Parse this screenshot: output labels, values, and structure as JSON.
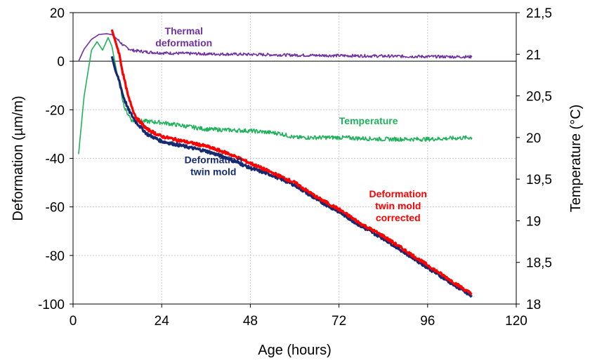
{
  "chart_data": {
    "type": "line",
    "xlabel": "Age (hours)",
    "ylabel": "Deformation (µm/m)",
    "y2label": "Temperature (°C)",
    "xlim": [
      0,
      120
    ],
    "ylim": [
      -100,
      20
    ],
    "y2lim": [
      18,
      21.5
    ],
    "xticks": [
      0,
      24,
      48,
      72,
      96,
      120
    ],
    "yticks": [
      20,
      0,
      -20,
      -40,
      -60,
      -80,
      -100
    ],
    "y2ticks": [
      "21,5",
      "21",
      "20,5",
      "20",
      "19,5",
      "19",
      "18,5",
      "18"
    ],
    "grid": true,
    "series": [
      {
        "name": "Thermal deformation",
        "axis": "left",
        "color": "#7030a0",
        "points": [
          [
            1.5,
            0
          ],
          [
            3,
            5
          ],
          [
            5,
            9
          ],
          [
            7,
            11
          ],
          [
            9,
            11.3
          ],
          [
            10.5,
            11
          ],
          [
            12,
            9
          ],
          [
            14,
            6
          ],
          [
            16,
            4.5
          ],
          [
            20,
            3.8
          ],
          [
            24,
            3.4
          ],
          [
            36,
            3
          ],
          [
            48,
            2.8
          ],
          [
            60,
            2.5
          ],
          [
            72,
            2.3
          ],
          [
            84,
            2.1
          ],
          [
            96,
            1.9
          ],
          [
            108,
            1.8
          ]
        ]
      },
      {
        "name": "Temperature",
        "axis": "right",
        "color": "#1fb25a",
        "points": [
          [
            1.5,
            19.8
          ],
          [
            3,
            20.5
          ],
          [
            5,
            21.05
          ],
          [
            6.5,
            21.15
          ],
          [
            8,
            21.05
          ],
          [
            9.5,
            21.2
          ],
          [
            10.5,
            21.1
          ],
          [
            12,
            20.75
          ],
          [
            14,
            20.35
          ],
          [
            16,
            20.2
          ],
          [
            18,
            20.2
          ],
          [
            24,
            20.18
          ],
          [
            36,
            20.1
          ],
          [
            48,
            20.08
          ],
          [
            56,
            20.05
          ],
          [
            60,
            20.0
          ],
          [
            72,
            20.0
          ],
          [
            84,
            19.98
          ],
          [
            96,
            19.98
          ],
          [
            108,
            20.0
          ]
        ]
      },
      {
        "name": "Deformation twin mold",
        "axis": "left",
        "color": "#152a70",
        "points": [
          [
            10.5,
            2
          ],
          [
            11.5,
            -4
          ],
          [
            12.5,
            -8
          ],
          [
            13.5,
            -14
          ],
          [
            15,
            -20
          ],
          [
            17,
            -25
          ],
          [
            20,
            -30
          ],
          [
            24,
            -33
          ],
          [
            30,
            -35
          ],
          [
            36,
            -37
          ],
          [
            42,
            -40
          ],
          [
            48,
            -44
          ],
          [
            54,
            -47
          ],
          [
            60,
            -51
          ],
          [
            66,
            -57
          ],
          [
            72,
            -62
          ],
          [
            78,
            -68
          ],
          [
            84,
            -73
          ],
          [
            90,
            -79
          ],
          [
            96,
            -85
          ],
          [
            102,
            -91
          ],
          [
            108,
            -97
          ]
        ]
      },
      {
        "name": "Deformation twin mold corrected",
        "axis": "left",
        "color": "#ff0000",
        "points": [
          [
            10.5,
            13
          ],
          [
            11.5,
            8
          ],
          [
            12.5,
            3
          ],
          [
            13.5,
            -5
          ],
          [
            15,
            -15
          ],
          [
            17,
            -23
          ],
          [
            20,
            -28
          ],
          [
            24,
            -31
          ],
          [
            30,
            -33
          ],
          [
            36,
            -35
          ],
          [
            42,
            -38
          ],
          [
            48,
            -42
          ],
          [
            54,
            -46
          ],
          [
            60,
            -50
          ],
          [
            66,
            -56
          ],
          [
            72,
            -61
          ],
          [
            78,
            -67
          ],
          [
            84,
            -72
          ],
          [
            90,
            -78
          ],
          [
            96,
            -84
          ],
          [
            102,
            -90
          ],
          [
            108,
            -96
          ]
        ]
      }
    ],
    "annotations": [
      {
        "lines": [
          "Thermal",
          "deformation"
        ],
        "color": "#7030a0",
        "x": 30,
        "y": 11
      },
      {
        "lines": [
          "Temperature"
        ],
        "color": "#1fb25a",
        "x": 80,
        "y": -26
      },
      {
        "lines": [
          "Deformation",
          "twin mold"
        ],
        "color": "#152a70",
        "x": 38,
        "y": -42
      },
      {
        "lines": [
          "Deformation",
          "twin mold",
          "corrected"
        ],
        "color": "#ff0000",
        "x": 88,
        "y": -56
      }
    ]
  }
}
